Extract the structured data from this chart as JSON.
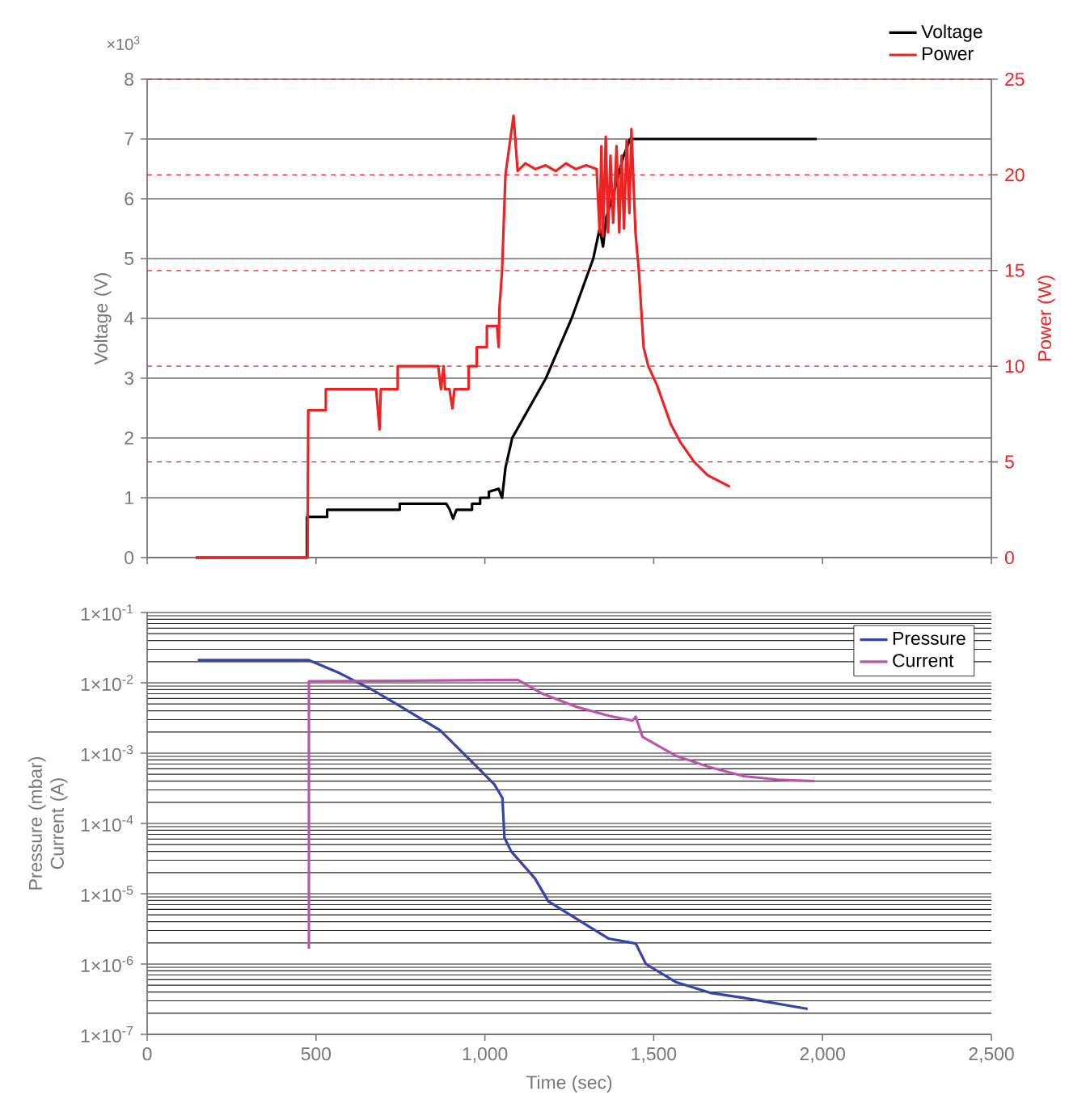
{
  "chart_data": [
    {
      "type": "line",
      "xlim": [
        0,
        2500
      ],
      "xticks": [
        {
          "value": 0,
          "label": null
        },
        {
          "value": 500,
          "label": null
        },
        {
          "value": 1000,
          "label": null
        },
        {
          "value": 1500,
          "label": null
        },
        {
          "value": 2000,
          "label": null
        },
        {
          "value": 2500,
          "label": null
        }
      ],
      "ylim": [
        0,
        8
      ],
      "yticks": [
        0,
        1,
        2,
        3,
        4,
        5,
        6,
        7,
        8
      ],
      "y2lim": [
        0,
        25
      ],
      "y2ticks": [
        0,
        5,
        10,
        15,
        20,
        25
      ],
      "ylabel": "Voltage (V)",
      "y2label": "Power (W)",
      "annotations": [
        "×10$^{3}$"
      ],
      "grid": "y",
      "legend": "top right",
      "tick_labels": "y",
      "series": [
        {
          "name": "Voltage",
          "color": "#000000",
          "x": [
            144,
            473,
            473,
            533,
            533,
            748,
            748,
            886,
            896,
            906,
            916,
            962,
            962,
            986,
            986,
            1012,
            1012,
            1041,
            1051,
            1061,
            1081,
            1111,
            1181,
            1257,
            1321,
            1340,
            1350,
            1360,
            1377,
            1410,
            1430,
            1983
          ],
          "values": [
            0,
            0,
            0.68,
            0.68,
            0.8,
            0.8,
            0.9,
            0.9,
            0.8,
            0.65,
            0.8,
            0.8,
            0.9,
            0.9,
            1.0,
            1.0,
            1.1,
            1.15,
            1.0,
            1.5,
            2.0,
            2.3,
            3.0,
            4.0,
            5.0,
            5.5,
            5.2,
            5.7,
            6.0,
            6.7,
            7.0,
            7.0
          ]
        },
        {
          "name": "Power",
          "color": "#ee2222",
          "axis": "y2",
          "x": [
            144,
            475,
            477,
            477,
            529,
            529,
            678,
            688,
            692,
            742,
            742,
            862,
            870,
            878,
            882,
            882,
            895,
            904,
            910,
            952,
            952,
            976,
            976,
            1006,
            1006,
            1036,
            1041,
            1043,
            1051,
            1061,
            1085,
            1097,
            1120,
            1150,
            1180,
            1210,
            1240,
            1270,
            1300,
            1331,
            1340,
            1345,
            1350,
            1358,
            1365,
            1372,
            1380,
            1390,
            1398,
            1405,
            1412,
            1420,
            1428,
            1434,
            1446,
            1456,
            1470,
            1484,
            1510,
            1550,
            1580,
            1620,
            1660,
            1726
          ],
          "values": [
            0,
            0,
            7.7,
            7.7,
            7.7,
            8.8,
            8.8,
            6.7,
            8.8,
            8.8,
            10.0,
            10.0,
            8.8,
            10.0,
            8.8,
            8.8,
            8.8,
            7.8,
            8.8,
            8.8,
            10.0,
            10.0,
            11.0,
            11.0,
            12.1,
            12.1,
            11.0,
            13.0,
            15.0,
            20.0,
            23.1,
            20.2,
            20.6,
            20.3,
            20.5,
            20.2,
            20.6,
            20.3,
            20.5,
            20.3,
            17.0,
            21.5,
            16.8,
            22.0,
            17.0,
            21.0,
            17.5,
            21.5,
            17.0,
            21.0,
            17.2,
            21.8,
            18.0,
            22.4,
            17.0,
            15.0,
            11.0,
            10.0,
            9.0,
            7.0,
            6.0,
            5.0,
            4.3,
            3.7
          ]
        }
      ]
    },
    {
      "type": "line",
      "log": "y",
      "xlim": [
        0,
        2500
      ],
      "xticks": [
        0,
        500,
        {
          "value": 1000,
          "label": "1,000"
        },
        {
          "value": 1500,
          "label": "1,500"
        },
        {
          "value": 2000,
          "label": "2,000"
        },
        {
          "value": 2500,
          "label": "2,500"
        }
      ],
      "ylim": [
        1e-07,
        0.1
      ],
      "yticks": [
        {
          "value": 1e-07,
          "label": "1×10$^{-7}$"
        },
        {
          "value": 1e-06,
          "label": "1×10$^{-6}$"
        },
        {
          "value": 1e-05,
          "label": "1×10$^{-5}$"
        },
        {
          "value": 0.0001,
          "label": "1×10$^{-4}$"
        },
        {
          "value": 0.001,
          "label": "1×10$^{-3}$"
        },
        {
          "value": 0.01,
          "label": "1×10$^{-2}$"
        },
        {
          "value": 0.1,
          "label": "1×10$^{-1}$"
        }
      ],
      "xlabel": "Time (sec)",
      "ylabel": "Pressure (mbar) Current (A)",
      "grid": "y",
      "legend": "top right",
      "series": [
        {
          "name": "Pressure",
          "color": "#3344aa",
          "x": [
            150,
            479,
            569,
            668,
            768,
            868,
            968,
            1028,
            1052,
            1058,
            1078,
            1148,
            1188,
            1268,
            1367,
            1447,
            1477,
            1567,
            1667,
            1767,
            1956
          ],
          "values": [
            0.021,
            0.021,
            0.0138,
            0.0079,
            0.0041,
            0.0021,
            0.0007,
            0.00036,
            0.00023,
            6.3e-05,
            4e-05,
            1.66e-05,
            7.8e-06,
            4.5e-06,
            2.3e-06,
            1.96e-06,
            1e-06,
            5.5e-07,
            3.9e-07,
            3.3e-07,
            2.3e-07
          ]
        },
        {
          "name": "Current",
          "color": "#bb55aa",
          "x": [
            479,
            479,
            1098,
            1168,
            1268,
            1367,
            1437,
            1447,
            1467,
            1567,
            1667,
            1767,
            1866,
            1976
          ],
          "values": [
            1.65e-06,
            0.0105,
            0.011,
            0.0071,
            0.0046,
            0.0034,
            0.0029,
            0.0033,
            0.0017,
            0.00091,
            0.00063,
            0.00047,
            0.00042,
            0.0004
          ]
        }
      ]
    }
  ]
}
